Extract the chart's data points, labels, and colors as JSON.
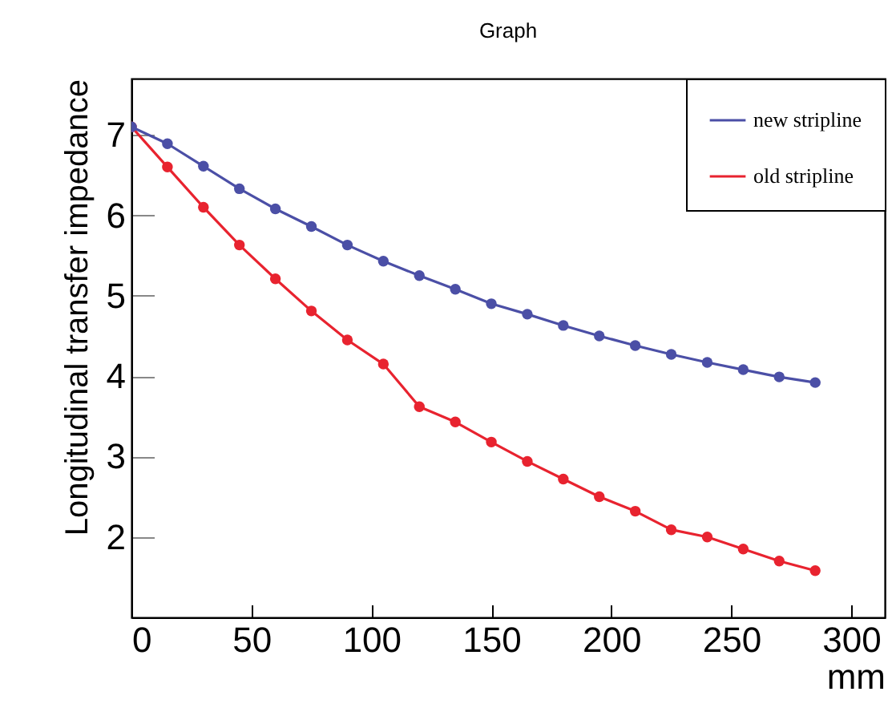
{
  "chart_data": {
    "type": "line",
    "title": "Graph",
    "xlabel": "mm",
    "ylabel": "Longitudinal transfer impedance",
    "x": [
      0,
      15,
      30,
      45,
      60,
      75,
      90,
      105,
      120,
      135,
      150,
      165,
      180,
      195,
      210,
      225,
      240,
      255,
      270,
      285
    ],
    "series": [
      {
        "name": "new stripline",
        "color": "#4b4fa6",
        "values": [
          7.1,
          6.89,
          6.61,
          6.33,
          6.08,
          5.86,
          5.63,
          5.43,
          5.25,
          5.08,
          4.9,
          4.77,
          4.63,
          4.5,
          4.38,
          4.27,
          4.17,
          4.08,
          3.99,
          3.92
        ]
      },
      {
        "name": "old stripline",
        "color": "#e8232f",
        "values": [
          7.1,
          6.6,
          6.1,
          5.63,
          5.21,
          4.81,
          4.45,
          4.15,
          3.62,
          3.43,
          3.18,
          2.94,
          2.72,
          2.5,
          2.32,
          2.09,
          2.0,
          1.85,
          1.7,
          1.58
        ]
      }
    ],
    "xlim": [
      0,
      314
    ],
    "ylim": [
      1,
      7.7
    ],
    "xticks": [
      0,
      50,
      100,
      150,
      200,
      250,
      300
    ],
    "yticks": [
      2,
      3,
      4,
      5,
      6,
      7
    ],
    "grid": false,
    "legend": "top right",
    "marker": "circle",
    "line_style": "solid"
  }
}
